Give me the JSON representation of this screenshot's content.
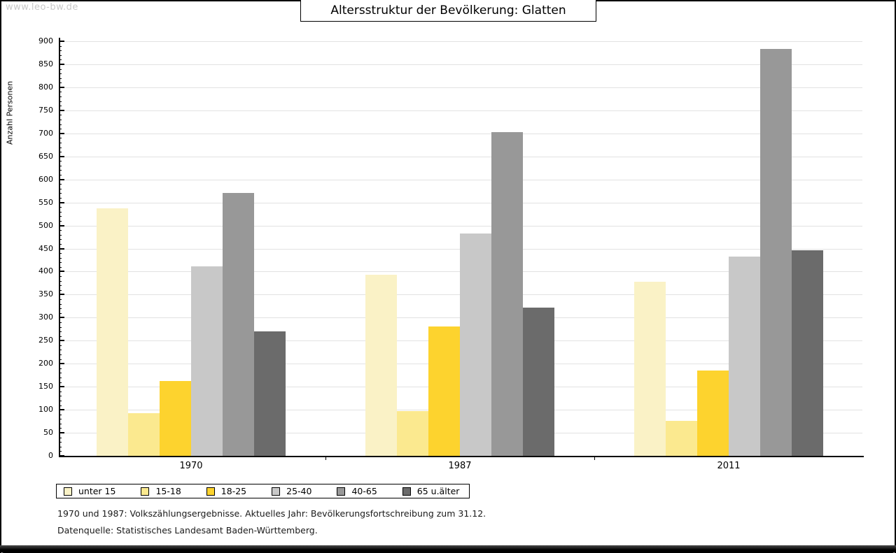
{
  "watermark": "www.leo-bw.de",
  "title": "Altersstruktur der Bevölkerung: Glatten",
  "chart_data": {
    "type": "bar",
    "title": "Altersstruktur der Bevölkerung: Glatten",
    "ylabel": "Anzahl Personen",
    "xlabel": "",
    "categories": [
      "1970",
      "1987",
      "2011"
    ],
    "series": [
      {
        "name": "unter 15",
        "color": "#FAF2C6",
        "values": [
          537,
          393,
          378
        ]
      },
      {
        "name": "15-18",
        "color": "#FBE98F",
        "values": [
          93,
          97,
          76
        ]
      },
      {
        "name": "18-25",
        "color": "#FDD32E",
        "values": [
          162,
          281,
          185
        ]
      },
      {
        "name": "25-40",
        "color": "#C8C8C8",
        "values": [
          412,
          483,
          433
        ]
      },
      {
        "name": "40-65",
        "color": "#989898",
        "values": [
          571,
          703,
          883
        ]
      },
      {
        "name": "65 u.älter",
        "color": "#6B6B6B",
        "values": [
          270,
          321,
          446
        ]
      }
    ],
    "ylim": [
      0,
      900
    ],
    "ytick_step": 50,
    "yminor_step": 10,
    "grid": true,
    "legend_position": "bottom-left",
    "gridline_color": "#e2e2e2",
    "axis_color": "#000000"
  },
  "footnotes": [
    "1970 und 1987: Volkszählungsergebnisse. Aktuelles Jahr: Bevölkerungsfortschreibung zum 31.12.",
    "Datenquelle: Statistisches Landesamt Baden-Württemberg."
  ]
}
